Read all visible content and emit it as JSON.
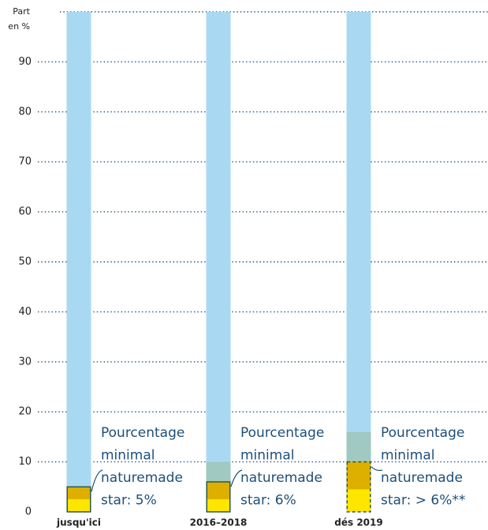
{
  "chart_data": {
    "type": "stacked_bar",
    "y_label": [
      "Part",
      "en %"
    ],
    "categories": [
      "jusqu'ici",
      "2016–2018",
      "dés 2019"
    ],
    "series": [
      {
        "color": "#ffe600",
        "values": [
          2.5,
          2.5,
          4.5
        ]
      },
      {
        "color": "#ddb000",
        "values": [
          2.5,
          3.5,
          5.5
        ]
      },
      {
        "color": "#9fc9c1",
        "values": [
          0,
          4,
          6
        ]
      },
      {
        "color": "#a9d9f2",
        "values": [
          95,
          90,
          84
        ]
      }
    ],
    "annotations": [
      [
        "Pourcentage",
        "minimal",
        "naturemade",
        "star: 5%"
      ],
      [
        "Pourcentage",
        "minimal",
        "naturemade",
        "star: 6%"
      ],
      [
        "Pourcentage",
        "minimal",
        "naturemade",
        "star: > 6%**"
      ]
    ],
    "ylim": [
      0,
      100
    ],
    "yticks": [
      0,
      10,
      20,
      30,
      40,
      50,
      60,
      70,
      80,
      90
    ],
    "grid": true
  }
}
